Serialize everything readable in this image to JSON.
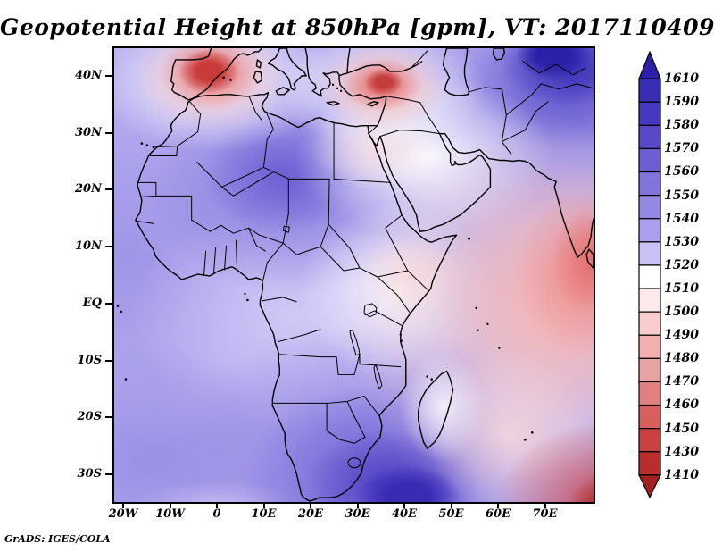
{
  "title": "Geopotential Height at 850hPa [gpm], VT: 2017110409",
  "attribution": "GrADS: IGES/COLA",
  "axes": {
    "lat_labels": [
      "40N",
      "30N",
      "20N",
      "10N",
      "EQ",
      "10S",
      "20S",
      "30S"
    ],
    "lon_labels": [
      "20W",
      "10W",
      "0",
      "10E",
      "20E",
      "30E",
      "40E",
      "50E",
      "60E",
      "70E"
    ]
  },
  "colorbar": {
    "labels": [
      "1610",
      "1590",
      "1580",
      "1570",
      "1560",
      "1550",
      "1540",
      "1530",
      "1520",
      "1510",
      "1500",
      "1490",
      "1480",
      "1470",
      "1460",
      "1450",
      "1430",
      "1410"
    ],
    "colors": [
      "#2c20ab",
      "#3a2db5",
      "#4638c0",
      "#5749c9",
      "#6b5fd3",
      "#8074dc",
      "#9488e5",
      "#aa9fee",
      "#c9c0f5",
      "#ffffff",
      "#fce9e9",
      "#f9cdcd",
      "#f4aeae",
      "#e8a2a2",
      "#e28080",
      "#d95e5e",
      "#cb4141",
      "#ba2d2d",
      "#a32020"
    ]
  },
  "chart_data": {
    "type": "heatmap",
    "subtype": "filled-contour-map",
    "title": "Geopotential Height at 850hPa [gpm], VT: 2017110409",
    "variable": "Geopotential Height",
    "pressure_level": "850hPa",
    "units": "gpm",
    "valid_time": "2017110409",
    "software": "GrADS: IGES/COLA",
    "x_axis": {
      "ticks": [
        "20W",
        "10W",
        "0",
        "10E",
        "20E",
        "30E",
        "40E",
        "50E",
        "60E",
        "70E"
      ],
      "approx_range": [
        "22W",
        "80E"
      ]
    },
    "y_axis": {
      "ticks": [
        "40N",
        "30N",
        "20N",
        "10N",
        "EQ",
        "10S",
        "20S",
        "30S"
      ],
      "approx_range": [
        "45N",
        "35S"
      ]
    },
    "contour_levels": [
      1410,
      1430,
      1450,
      1460,
      1470,
      1480,
      1490,
      1500,
      1510,
      1520,
      1530,
      1540,
      1550,
      1560,
      1570,
      1580,
      1590,
      1610
    ],
    "palette_top_to_bottom": [
      "#2c20ab",
      "#3a2db5",
      "#4638c0",
      "#5749c9",
      "#6b5fd3",
      "#8074dc",
      "#9488e5",
      "#aa9fee",
      "#c9c0f5",
      "#ffffff",
      "#fce9e9",
      "#f9cdcd",
      "#f4aeae",
      "#e8a2a2",
      "#e28080",
      "#d95e5e",
      "#cb4141",
      "#ba2d2d",
      "#a32020"
    ],
    "colorbar_orientation": "vertical-right",
    "features": [
      "Maximum > 1610 gpm (dark blue) over Central Asia in the top-right corner",
      "Broad high ~1560-1590 gpm (blue-purple) over northwest Africa / Algeria",
      "Strong high ~1590-1610 gpm (dark blue) over South Africa and southern Indian Ocean south of Madagascar",
      "Minimum ~1430-1450 gpm (dark red) centered on the Iberian Peninsula with white ring around it",
      "Secondary low ~1450-1470 gpm (red) over the Aegean Sea / western Turkey",
      "Broad low ~1460-1500 gpm (pink-red) over the central Indian Ocean east of Madagascar, strongest near India/Sri Lanka",
      "Minimum < 1410 gpm (dark red) in the far southeast corner of the domain",
      "Near-neutral 1510-1520 gpm (white) band over Arabia, Egypt, the Horn of Africa and along the East African coast",
      "Light purple ~1520-1540 gpm over central equatorial Africa and the Gulf of Guinea"
    ]
  }
}
